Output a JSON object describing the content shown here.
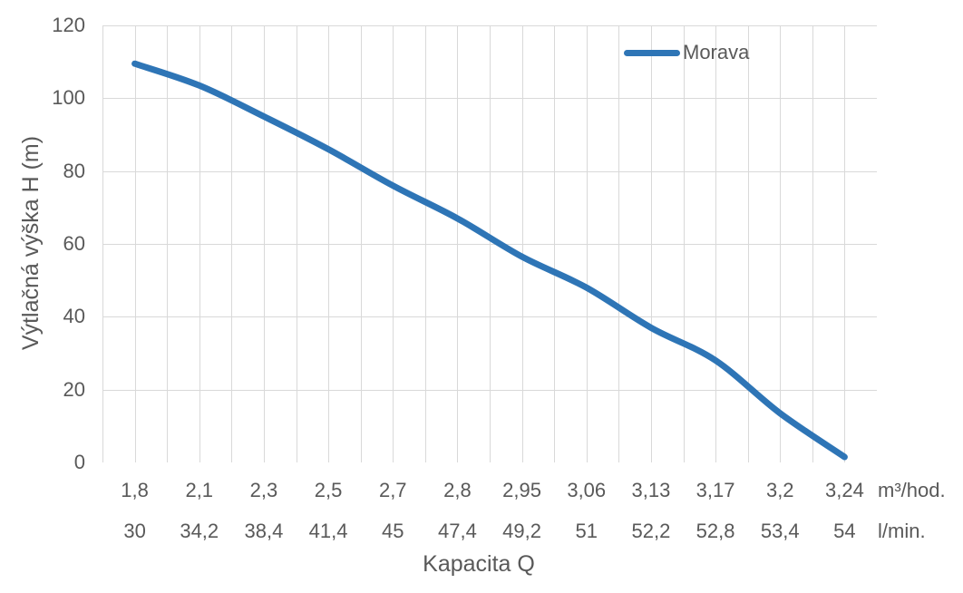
{
  "chart_data": {
    "type": "line",
    "title": "",
    "xlabel": "Kapacita Q",
    "ylabel": "Výtlačná výška H (m)",
    "x_units": [
      "m³/hod.",
      "l/min."
    ],
    "categories_m3_hod": [
      "1,8",
      "2,1",
      "2,3",
      "2,5",
      "2,7",
      "2,8",
      "2,95",
      "3,06",
      "3,13",
      "3,17",
      "3,2",
      "3,24"
    ],
    "categories_l_min": [
      "30",
      "34,2",
      "38,4",
      "41,4",
      "45",
      "47,4",
      "49,2",
      "51",
      "52,2",
      "52,8",
      "53,4",
      "54"
    ],
    "series": [
      {
        "name": "Morava",
        "color": "#2E75B6",
        "values": [
          109.5,
          103.5,
          95,
          86,
          76,
          67,
          56.5,
          48,
          37,
          28,
          13.5,
          1.5
        ]
      }
    ],
    "y_ticks": [
      0,
      20,
      40,
      60,
      80,
      100,
      120
    ],
    "ylim": [
      0,
      120
    ],
    "legend_position": "top-right-inside",
    "grid": {
      "shown": true,
      "color": "#D9D9D9",
      "vertical_lines_per_category": 2
    },
    "text_color": "#595959",
    "background_color": "#FFFFFF"
  }
}
